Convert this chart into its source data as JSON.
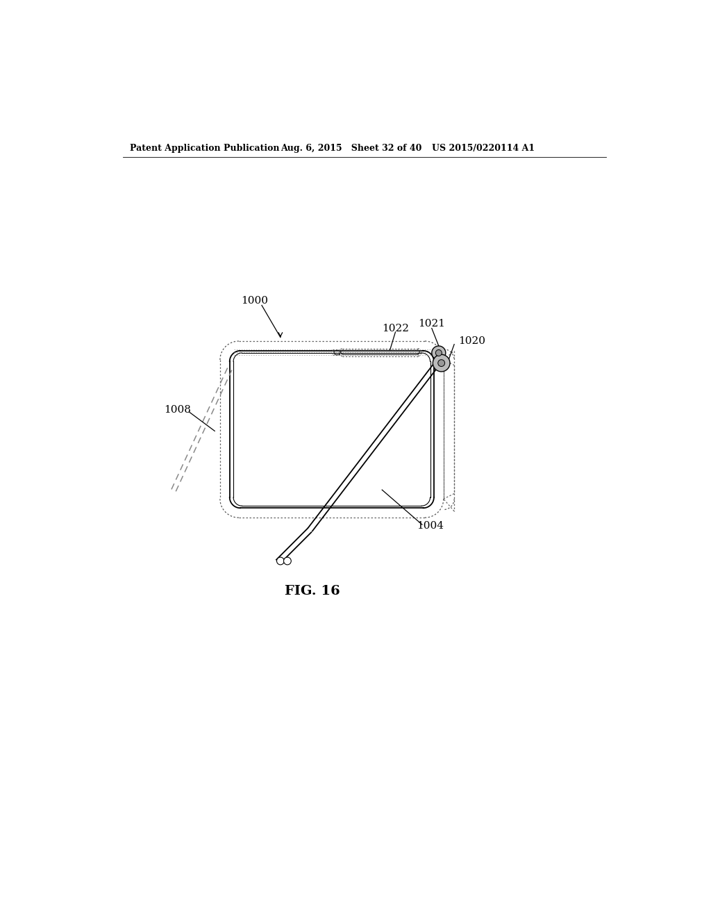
{
  "bg_color": "#ffffff",
  "line_color": "#000000",
  "header_left": "Patent Application Publication",
  "header_mid": "Aug. 6, 2015   Sheet 32 of 40",
  "header_right": "US 2015/0220114 A1",
  "fig_label": "FIG. 16",
  "dot_color": "#777777",
  "gray_fill": "#bbbbbb",
  "light_gray": "#cccccc"
}
